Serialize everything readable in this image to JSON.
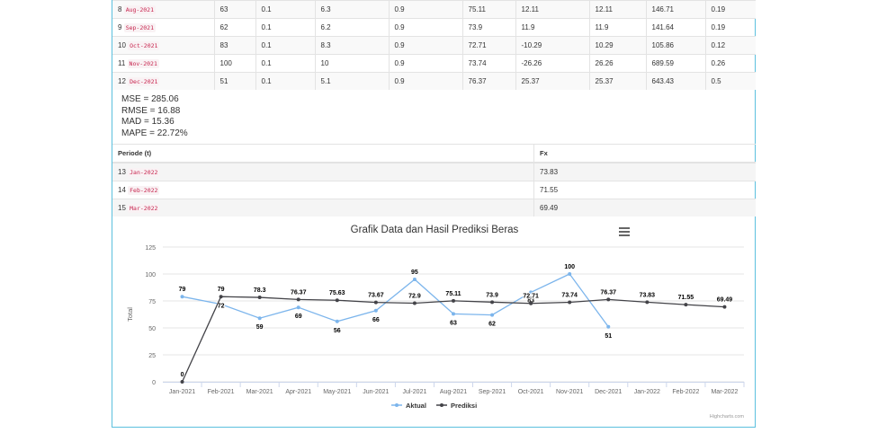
{
  "history_rows": [
    {
      "t": "8",
      "period": "Aug-2021",
      "actual": "63",
      "alpha": "0.1",
      "a": "6.3",
      "b": "0.9",
      "c": "75.11",
      "error": "12.11",
      "abs_error": "12.11",
      "sq_error": "146.71",
      "pct_error": "0.19"
    },
    {
      "t": "9",
      "period": "Sep-2021",
      "actual": "62",
      "alpha": "0.1",
      "a": "6.2",
      "b": "0.9",
      "c": "73.9",
      "error": "11.9",
      "abs_error": "11.9",
      "sq_error": "141.64",
      "pct_error": "0.19"
    },
    {
      "t": "10",
      "period": "Oct-2021",
      "actual": "83",
      "alpha": "0.1",
      "a": "8.3",
      "b": "0.9",
      "c": "72.71",
      "error": "-10.29",
      "abs_error": "10.29",
      "sq_error": "105.86",
      "pct_error": "0.12"
    },
    {
      "t": "11",
      "period": "Nov-2021",
      "actual": "100",
      "alpha": "0.1",
      "a": "10",
      "b": "0.9",
      "c": "73.74",
      "error": "-26.26",
      "abs_error": "26.26",
      "sq_error": "689.59",
      "pct_error": "0.26"
    },
    {
      "t": "12",
      "period": "Dec-2021",
      "actual": "51",
      "alpha": "0.1",
      "a": "5.1",
      "b": "0.9",
      "c": "76.37",
      "error": "25.37",
      "abs_error": "25.37",
      "sq_error": "643.43",
      "pct_error": "0.5"
    }
  ],
  "metrics": {
    "mse": "MSE = 285.06",
    "rmse": "RMSE = 16.88",
    "mad": "MAD = 15.36",
    "mape": "MAPE = 22.72%"
  },
  "forecast_table": {
    "headers": [
      "Periode (t)",
      "Fx"
    ],
    "rows": [
      {
        "t": "13",
        "period": "Jan-2022",
        "fx": "73.83"
      },
      {
        "t": "14",
        "period": "Feb-2022",
        "fx": "71.55"
      },
      {
        "t": "15",
        "period": "Mar-2022",
        "fx": "69.49"
      }
    ]
  },
  "chart_data": {
    "type": "line",
    "title": "Grafik Data dan Hasil Prediksi Beras",
    "ylabel": "Total",
    "xlabel": "",
    "ylim": [
      0,
      125
    ],
    "yticks": [
      0,
      25,
      50,
      75,
      100,
      125
    ],
    "categories": [
      "Jan-2021",
      "Feb-2021",
      "Mar-2021",
      "Apr-2021",
      "May-2021",
      "Jun-2021",
      "Jul-2021",
      "Aug-2021",
      "Sep-2021",
      "Oct-2021",
      "Nov-2021",
      "Dec-2021",
      "Jan-2022",
      "Feb-2022",
      "Mar-2022"
    ],
    "series": [
      {
        "name": "Aktual",
        "color": "#7cb5ec",
        "values": [
          79,
          72,
          59,
          69,
          56,
          66,
          95,
          63,
          62,
          83,
          100,
          51,
          null,
          null,
          null
        ]
      },
      {
        "name": "Prediksi",
        "color": "#434348",
        "values": [
          0,
          79,
          78.3,
          76.37,
          75.63,
          73.67,
          72.9,
          75.11,
          73.9,
          72.71,
          73.74,
          76.37,
          73.83,
          71.55,
          69.49
        ]
      }
    ],
    "legend": "bottom-center",
    "grid": true,
    "credits": "Highcharts.com"
  },
  "icons": {
    "menu": "hamburger-menu-icon"
  }
}
